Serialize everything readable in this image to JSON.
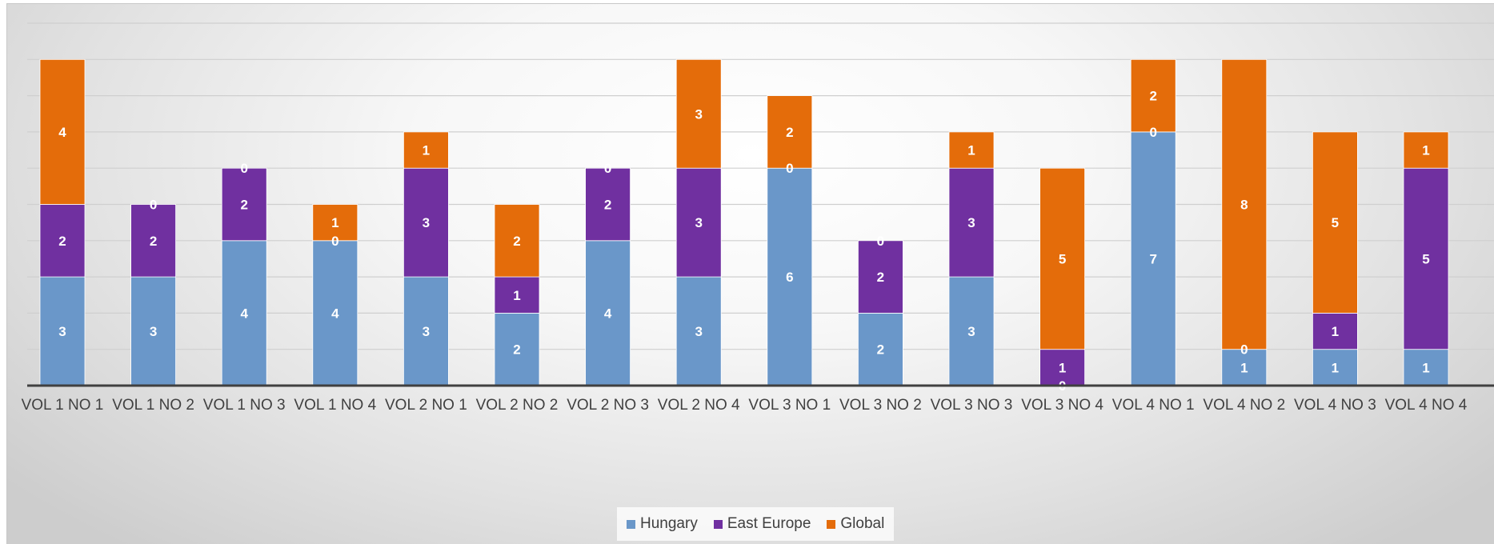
{
  "chart_data": {
    "type": "bar",
    "stacked": true,
    "categories": [
      "VOL 1 NO 1",
      "VOL 1 NO 2",
      "VOL 1 NO 3",
      "VOL 1 NO 4",
      "VOL 2 NO 1",
      "VOL 2 NO 2",
      "VOL 2 NO 3",
      "VOL 2 NO 4",
      "VOL 3 NO 1",
      "VOL 3 NO 2",
      "VOL 3 NO 3",
      "VOL 3 NO 4",
      "VOL 4 NO 1",
      "VOL 4 NO 2",
      "VOL 4 NO 3",
      "VOL 4 NO 4"
    ],
    "series": [
      {
        "name": "Hungary",
        "color": "#6a97c9",
        "values": [
          3,
          3,
          4,
          4,
          3,
          2,
          4,
          3,
          6,
          2,
          3,
          0,
          7,
          1,
          1,
          1
        ]
      },
      {
        "name": "East Europe",
        "color": "#7030a0",
        "values": [
          2,
          2,
          2,
          0,
          3,
          1,
          2,
          3,
          0,
          2,
          3,
          1,
          0,
          0,
          1,
          5
        ]
      },
      {
        "name": "Global",
        "color": "#e46c0a",
        "values": [
          4,
          0,
          0,
          1,
          1,
          2,
          0,
          3,
          2,
          0,
          1,
          5,
          2,
          8,
          5,
          1
        ]
      }
    ],
    "ylim": [
      0,
      10
    ],
    "grid": true,
    "legend": "bottom",
    "data_labels": true
  }
}
